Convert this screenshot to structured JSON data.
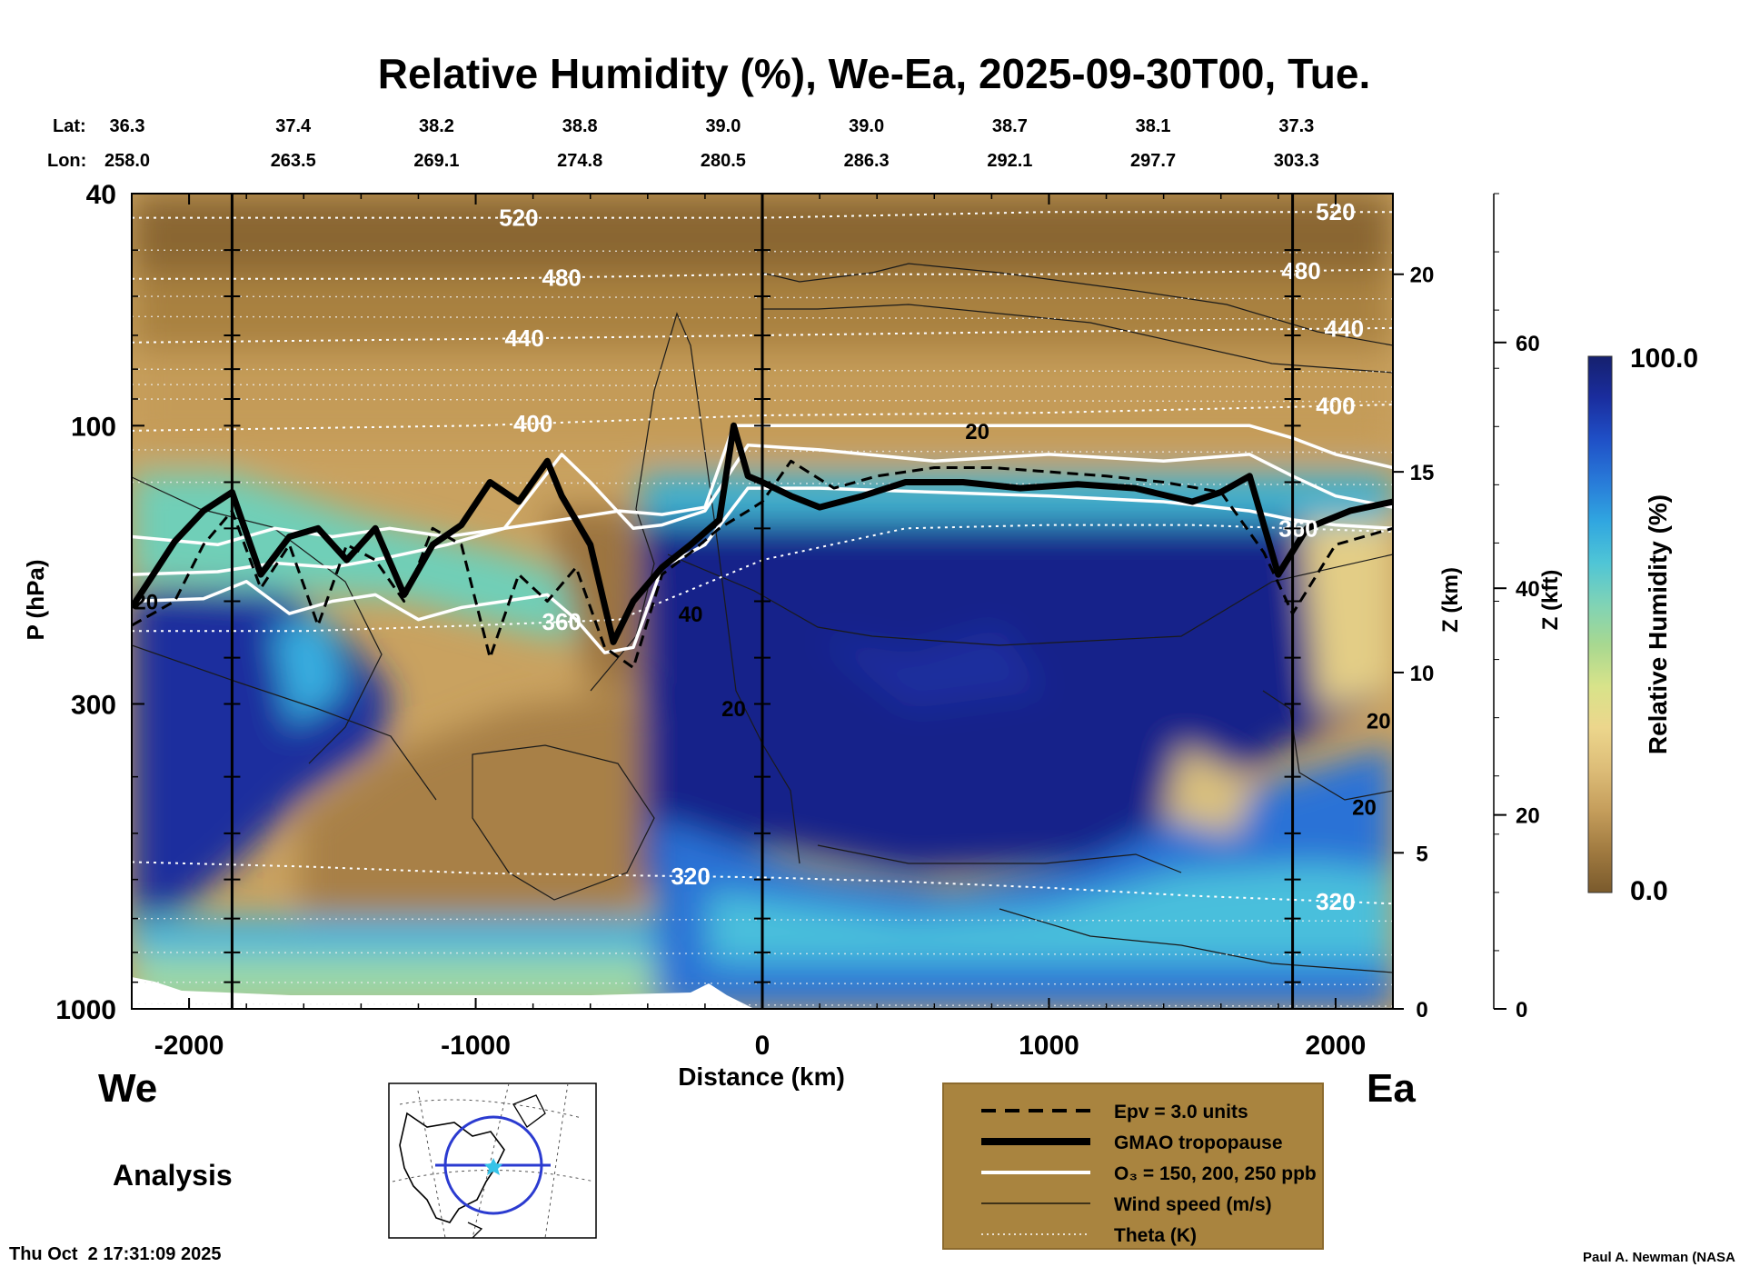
{
  "chart_data": {
    "type": "heatmap",
    "title": "Relative Humidity (%), We-Ea, 2025-09-30T00, Tue.",
    "xlabel": "Distance (km)",
    "ylabel": "P (hPa)",
    "y2label": "Z (km)",
    "y3label": "Z (kft)",
    "xlim": [
      -2200,
      2200
    ],
    "ylim": [
      1000,
      40
    ],
    "y_scale": "log",
    "x_ticks": [
      -2000,
      -1000,
      0,
      1000,
      2000
    ],
    "y_ticks": [
      {
        "value": 40,
        "label": "40"
      },
      {
        "value": 100,
        "label": "100"
      },
      {
        "value": 300,
        "label": "300"
      },
      {
        "value": 1000,
        "label": "1000"
      }
    ],
    "z_km_ticks": [
      {
        "p": 1000,
        "label": "0"
      },
      {
        "p": 540,
        "label": "5"
      },
      {
        "p": 265,
        "label": "10"
      },
      {
        "p": 120,
        "label": "15"
      },
      {
        "p": 55,
        "label": "20"
      }
    ],
    "z_kft_ticks": [
      {
        "p": 1000,
        "label": "0"
      },
      {
        "p": 465,
        "label": "20"
      },
      {
        "p": 190,
        "label": "40"
      },
      {
        "p": 72,
        "label": "60"
      }
    ],
    "lat_label": "Lat:",
    "lon_label": "Lon:",
    "lat_lon": [
      {
        "x": -2200,
        "lat": "36.3",
        "lon": "258.0"
      },
      {
        "x": -1700,
        "lat": "37.4",
        "lon": "263.5"
      },
      {
        "x": -1200,
        "lat": "38.2",
        "lon": "269.1"
      },
      {
        "x": -700,
        "lat": "38.8",
        "lon": "274.8"
      },
      {
        "x": -200,
        "lat": "39.0",
        "lon": "280.5"
      },
      {
        "x": 300,
        "lat": "39.0",
        "lon": "286.3"
      },
      {
        "x": 800,
        "lat": "38.7",
        "lon": "292.1"
      },
      {
        "x": 1300,
        "lat": "38.1",
        "lon": "297.7"
      },
      {
        "x": 1800,
        "lat": "37.3",
        "lon": "303.3"
      }
    ],
    "vertical_markers": [
      -1850,
      0,
      1850
    ],
    "tropopause": {
      "x": [
        -2200,
        -2050,
        -1950,
        -1850,
        -1750,
        -1650,
        -1550,
        -1450,
        -1350,
        -1250,
        -1150,
        -1050,
        -950,
        -850,
        -750,
        -700,
        -600,
        -520,
        -450,
        -350,
        -250,
        -150,
        -100,
        -50,
        0,
        100,
        200,
        350,
        500,
        700,
        900,
        1100,
        1300,
        1500,
        1600,
        1700,
        1800,
        1900,
        2050,
        2200
      ],
      "p": [
        205,
        158,
        140,
        130,
        180,
        155,
        150,
        170,
        150,
        195,
        160,
        148,
        125,
        135,
        115,
        132,
        160,
        235,
        200,
        175,
        160,
        145,
        100,
        122,
        125,
        132,
        138,
        132,
        125,
        125,
        128,
        126,
        128,
        135,
        130,
        122,
        180,
        150,
        140,
        135
      ]
    },
    "epv_line": {
      "x": [
        -2200,
        -2050,
        -1950,
        -1850,
        -1750,
        -1650,
        -1550,
        -1450,
        -1350,
        -1250,
        -1150,
        -1050,
        -950,
        -850,
        -750,
        -650,
        -550,
        -450,
        -350,
        -250,
        -150,
        -50,
        0,
        100,
        250,
        400,
        600,
        800,
        1000,
        1200,
        1400,
        1600,
        1750,
        1850,
        2000,
        2200
      ],
      "p": [
        220,
        200,
        160,
        140,
        190,
        160,
        220,
        160,
        170,
        200,
        150,
        160,
        250,
        180,
        200,
        175,
        240,
        260,
        180,
        165,
        150,
        140,
        135,
        115,
        128,
        122,
        118,
        118,
        120,
        122,
        125,
        130,
        165,
        210,
        160,
        150
      ]
    },
    "o3_contours": [
      {
        "label": "150",
        "x": [
          -2200,
          -1900,
          -1700,
          -1500,
          -1300,
          -1100,
          -900,
          -700,
          -500,
          -350,
          -200,
          -100,
          200,
          600,
          1000,
          1400,
          1700,
          1850,
          2000,
          2200
        ],
        "p": [
          155,
          160,
          150,
          155,
          150,
          155,
          150,
          145,
          140,
          142,
          138,
          100,
          100,
          100,
          100,
          100,
          100,
          105,
          112,
          118
        ]
      },
      {
        "label": "200",
        "x": [
          -2200,
          -1900,
          -1700,
          -1500,
          -1300,
          -1100,
          -900,
          -700,
          -600,
          -450,
          -350,
          -200,
          -50,
          200,
          600,
          1000,
          1400,
          1700,
          1850,
          2000,
          2200
        ],
        "p": [
          180,
          178,
          172,
          175,
          168,
          160,
          150,
          112,
          125,
          150,
          148,
          140,
          108,
          110,
          115,
          112,
          115,
          112,
          122,
          132,
          138
        ]
      },
      {
        "label": "250",
        "x": [
          -2200,
          -1950,
          -1800,
          -1650,
          -1500,
          -1350,
          -1200,
          -1050,
          -900,
          -750,
          -650,
          -550,
          -450,
          -350,
          -200,
          -50,
          200,
          600,
          1000,
          1400,
          1700,
          1850,
          2000,
          2200
        ],
        "p": [
          200,
          198,
          185,
          210,
          200,
          195,
          215,
          205,
          200,
          195,
          215,
          245,
          240,
          175,
          160,
          128,
          128,
          130,
          132,
          135,
          140,
          145,
          148,
          150
        ]
      }
    ],
    "theta_contours": [
      {
        "label": "320",
        "x": [
          -2200,
          -1600,
          -1000,
          -500,
          0,
          500,
          1000,
          1500,
          2200
        ],
        "p": [
          560,
          570,
          585,
          590,
          595,
          605,
          620,
          640,
          660
        ]
      },
      {
        "label": "360",
        "x": [
          -2200,
          -1600,
          -1000,
          -500,
          0,
          500,
          1000,
          1500,
          2200
        ],
        "p": [
          225,
          225,
          220,
          215,
          170,
          150,
          148,
          148,
          152
        ]
      },
      {
        "label": "400",
        "x": [
          -2200,
          -1000,
          0,
          1000,
          2200
        ],
        "p": [
          102,
          100,
          96,
          95,
          92
        ]
      },
      {
        "label": "440",
        "x": [
          -2200,
          -1000,
          0,
          1000,
          2200
        ],
        "p": [
          72,
          71,
          70,
          69,
          68
        ]
      },
      {
        "label": "480",
        "x": [
          -2200,
          -1000,
          0,
          1000,
          2200
        ],
        "p": [
          56,
          56,
          55,
          55,
          54
        ]
      },
      {
        "label": "520",
        "x": [
          -2200,
          -1000,
          0,
          1000,
          2200
        ],
        "p": [
          44,
          44,
          44,
          43,
          43
        ]
      }
    ],
    "wind_labels": [
      {
        "label": "20",
        "x": 750,
        "p": 102
      },
      {
        "label": "40",
        "x": -250,
        "p": 210
      },
      {
        "label": "20",
        "x": -100,
        "p": 305
      },
      {
        "label": "20",
        "x": 2150,
        "p": 320
      },
      {
        "label": "20",
        "x": 2100,
        "p": 450
      },
      {
        "label": "20",
        "x": -2150,
        "p": 200
      }
    ],
    "colorbar": {
      "label": "Relative Humidity (%)",
      "min_label": "0.0",
      "max_label": "100.0",
      "colors": [
        "#7a5a2c",
        "#a07a40",
        "#c59e5c",
        "#ddbd78",
        "#ecd68c",
        "#d8e38a",
        "#a8d890",
        "#7fd3b6",
        "#4fc5d6",
        "#30a6e0",
        "#2879d8",
        "#1f4fc6",
        "#1a2d9e",
        "#15206e"
      ]
    },
    "legend": [
      {
        "style": "dashed",
        "label": "Epv = 3.0 units"
      },
      {
        "style": "thick",
        "label": "GMAO tropopause"
      },
      {
        "style": "white",
        "label": "O₃ = 150, 200, 250 ppb"
      },
      {
        "style": "thin",
        "label": "Wind speed (m/s)"
      },
      {
        "style": "dotted",
        "label": "Theta (K)"
      }
    ],
    "west_label": "We",
    "east_label": "Ea",
    "analysis_label": "Analysis",
    "timestamp": "Thu Oct  2 17:31:09 2025",
    "credit": "Paul A. Newman (NASA"
  }
}
